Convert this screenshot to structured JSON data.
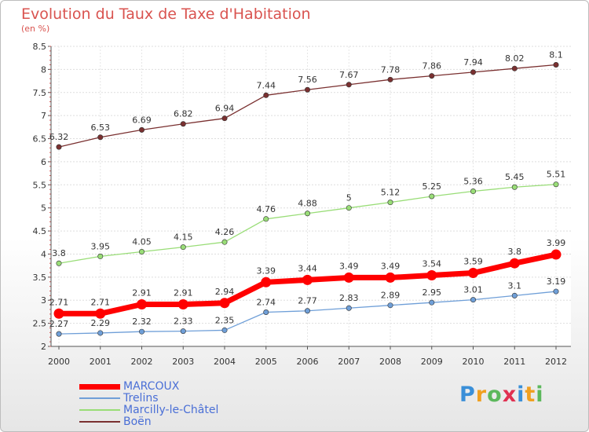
{
  "chart_data": {
    "type": "line",
    "title": "Evolution du Taux de Taxe d'Habitation",
    "subtitle": "(en %)",
    "ylim": [
      2,
      8.5
    ],
    "yticks": [
      "2",
      "2.5",
      "3",
      "3.5",
      "4",
      "4.5",
      "5",
      "5.5",
      "6",
      "6.5",
      "7",
      "7.5",
      "8",
      "8.5"
    ],
    "x": [
      "2000",
      "2001",
      "2002",
      "2003",
      "2004",
      "2005",
      "2006",
      "2007",
      "2008",
      "2009",
      "2010",
      "2011",
      "2012"
    ],
    "legend_position": "bottom-left",
    "series": [
      {
        "name": "MARCOUX",
        "color": "#ff0000",
        "values": [
          2.71,
          2.71,
          2.91,
          2.91,
          2.94,
          3.39,
          3.44,
          3.49,
          3.49,
          3.54,
          3.59,
          3.8,
          3.99
        ],
        "labels": [
          "2.71",
          "2.71",
          "2.91",
          "2.91",
          "2.94",
          "3.39",
          "3.44",
          "3.49",
          "3.49",
          "3.54",
          "3.59",
          "3.8",
          "3.99"
        ]
      },
      {
        "name": "Trelins",
        "color": "#6f9fd8",
        "values": [
          2.27,
          2.29,
          2.32,
          2.33,
          2.35,
          2.74,
          2.77,
          2.83,
          2.89,
          2.95,
          3.01,
          3.1,
          3.19
        ],
        "labels": [
          "2.27",
          "2.29",
          "2.32",
          "2.33",
          "2.35",
          "2.74",
          "2.77",
          "2.83",
          "2.89",
          "2.95",
          "3.01",
          "3.1",
          "3.19"
        ]
      },
      {
        "name": "Marcilly-le-Châtel",
        "color": "#99dd77",
        "values": [
          3.8,
          3.95,
          4.05,
          4.15,
          4.26,
          4.76,
          4.88,
          5,
          5.12,
          5.25,
          5.36,
          5.45,
          5.51
        ],
        "labels": [
          "3.8",
          "3.95",
          "4.05",
          "4.15",
          "4.26",
          "4.76",
          "4.88",
          "5",
          "5.12",
          "5.25",
          "5.36",
          "5.45",
          "5.51"
        ]
      },
      {
        "name": "Boën",
        "color": "#7a3030",
        "values": [
          6.32,
          6.53,
          6.69,
          6.82,
          6.94,
          7.44,
          7.56,
          7.67,
          7.78,
          7.86,
          7.94,
          8.02,
          8.1
        ],
        "labels": [
          "6.32",
          "6.53",
          "6.69",
          "6.82",
          "6.94",
          "7.44",
          "7.56",
          "7.67",
          "7.78",
          "7.86",
          "7.94",
          "8.02",
          "8.1"
        ]
      }
    ]
  },
  "legend": {
    "items": [
      {
        "label": "MARCOUX",
        "color": "#ff0000"
      },
      {
        "label": "Trelins",
        "color": "#6f9fd8"
      },
      {
        "label": "Marcilly-le-Châtel",
        "color": "#99dd77"
      },
      {
        "label": "Boën",
        "color": "#7a3030"
      }
    ]
  },
  "logo": {
    "text": "Proxiti"
  }
}
